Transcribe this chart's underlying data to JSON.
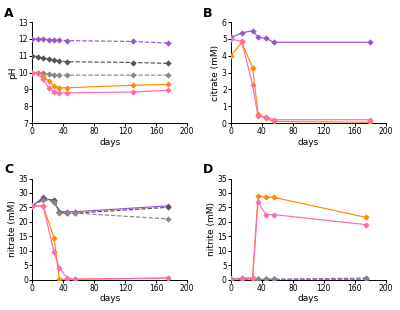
{
  "panel_A": {
    "label": "A",
    "ylabel": "pH",
    "xlabel": "days",
    "ylim": [
      7,
      13
    ],
    "yticks": [
      7,
      8,
      9,
      10,
      11,
      12,
      13
    ],
    "xlim": [
      0,
      200
    ],
    "xticks": [
      0,
      40,
      80,
      120,
      160,
      200
    ],
    "series": [
      {
        "x": [
          0,
          7,
          14,
          21,
          28,
          35,
          45,
          130,
          175
        ],
        "y": [
          12.0,
          12.0,
          12.0,
          11.95,
          11.95,
          11.95,
          11.9,
          11.85,
          11.75
        ],
        "color": "#9955CC",
        "dashed": true,
        "marker": "D"
      },
      {
        "x": [
          0,
          7,
          14,
          21,
          28,
          35,
          45,
          130,
          175
        ],
        "y": [
          11.0,
          10.95,
          10.85,
          10.8,
          10.75,
          10.7,
          10.65,
          10.6,
          10.55
        ],
        "color": "#555555",
        "dashed": true,
        "marker": "D"
      },
      {
        "x": [
          0,
          7,
          14,
          21,
          28,
          35,
          45,
          130,
          175
        ],
        "y": [
          10.0,
          10.0,
          9.95,
          9.9,
          9.88,
          9.87,
          9.85,
          9.85,
          9.85
        ],
        "color": "#888888",
        "dashed": true,
        "marker": "D"
      },
      {
        "x": [
          0,
          7,
          14,
          21,
          28,
          35,
          45,
          130,
          175
        ],
        "y": [
          10.0,
          10.0,
          9.8,
          9.5,
          9.2,
          9.1,
          9.1,
          9.25,
          9.3
        ],
        "color": "#FF8C00",
        "dashed": false,
        "marker": "D"
      },
      {
        "x": [
          0,
          7,
          14,
          21,
          28,
          35,
          45,
          130,
          175
        ],
        "y": [
          10.0,
          9.95,
          9.6,
          9.1,
          8.85,
          8.8,
          8.8,
          8.85,
          8.95
        ],
        "color": "#FF69B4",
        "dashed": false,
        "marker": "D"
      }
    ]
  },
  "panel_B": {
    "label": "B",
    "ylabel": "citrate (mM)",
    "xlabel": "days",
    "ylim": [
      0,
      6
    ],
    "yticks": [
      0,
      1,
      2,
      3,
      4,
      5,
      6
    ],
    "xlim": [
      0,
      200
    ],
    "xticks": [
      0,
      40,
      80,
      120,
      160,
      200
    ],
    "series": [
      {
        "x": [
          0,
          14,
          28,
          35,
          45,
          55,
          180
        ],
        "y": [
          5.1,
          5.35,
          5.5,
          5.1,
          5.05,
          4.8,
          4.8
        ],
        "color": "#9955CC",
        "dashed": false,
        "marker": "D"
      },
      {
        "x": [
          0,
          14,
          28,
          35,
          45,
          55,
          180
        ],
        "y": [
          4.0,
          4.8,
          3.3,
          0.55,
          0.3,
          0.1,
          0.05
        ],
        "color": "#FF8C00",
        "dashed": false,
        "marker": "D"
      },
      {
        "x": [
          0,
          14,
          28,
          35,
          45,
          55,
          180
        ],
        "y": [
          5.0,
          4.85,
          2.25,
          0.4,
          0.35,
          0.2,
          0.2
        ],
        "color": "#FF69B4",
        "dashed": false,
        "marker": "D"
      }
    ]
  },
  "panel_C": {
    "label": "C",
    "ylabel": "nitrate (mM)",
    "xlabel": "days",
    "ylim": [
      0,
      35
    ],
    "yticks": [
      0,
      5,
      10,
      15,
      20,
      25,
      30,
      35
    ],
    "xlim": [
      0,
      200
    ],
    "xticks": [
      0,
      40,
      80,
      120,
      160,
      200
    ],
    "series": [
      {
        "x": [
          0,
          14,
          28,
          35,
          45,
          55,
          175
        ],
        "y": [
          25.5,
          28.5,
          27.0,
          23.5,
          23.5,
          23.5,
          25.5
        ],
        "color": "#9955CC",
        "dashed": false,
        "marker": "D"
      },
      {
        "x": [
          0,
          14,
          28,
          35,
          45,
          55,
          175
        ],
        "y": [
          25.5,
          28.0,
          27.5,
          23.5,
          23.0,
          23.0,
          25.0
        ],
        "color": "#555555",
        "dashed": true,
        "marker": "D"
      },
      {
        "x": [
          0,
          14,
          28,
          35,
          45,
          55,
          175
        ],
        "y": [
          25.5,
          27.5,
          27.0,
          23.0,
          23.0,
          23.0,
          21.0
        ],
        "color": "#888888",
        "dashed": true,
        "marker": "D"
      },
      {
        "x": [
          0,
          14,
          28,
          35,
          45,
          55,
          175
        ],
        "y": [
          25.5,
          25.5,
          14.5,
          0.1,
          0.1,
          0.1,
          0.5
        ],
        "color": "#FF8C00",
        "dashed": false,
        "marker": "D"
      },
      {
        "x": [
          0,
          14,
          28,
          35,
          45,
          55,
          175
        ],
        "y": [
          25.5,
          25.5,
          9.5,
          4.0,
          0.5,
          0.1,
          0.5
        ],
        "color": "#FF69B4",
        "dashed": false,
        "marker": "D"
      }
    ]
  },
  "panel_D": {
    "label": "D",
    "ylabel": "nitrite (mM)",
    "xlabel": "days",
    "ylim": [
      0,
      35
    ],
    "yticks": [
      0,
      5,
      10,
      15,
      20,
      25,
      30,
      35
    ],
    "xlim": [
      0,
      200
    ],
    "xticks": [
      0,
      40,
      80,
      120,
      160,
      200
    ],
    "series": [
      {
        "x": [
          0,
          14,
          28,
          35,
          45,
          55,
          175
        ],
        "y": [
          0.1,
          0.1,
          0.1,
          0.1,
          0.1,
          0.1,
          0.5
        ],
        "color": "#9955CC",
        "dashed": true,
        "marker": "D"
      },
      {
        "x": [
          0,
          14,
          28,
          35,
          45,
          55,
          175
        ],
        "y": [
          0.1,
          0.1,
          0.1,
          0.1,
          0.1,
          0.1,
          0.1
        ],
        "color": "#555555",
        "dashed": true,
        "marker": "D"
      },
      {
        "x": [
          0,
          14,
          28,
          35,
          45,
          55,
          175
        ],
        "y": [
          0.1,
          0.1,
          0.1,
          0.1,
          0.1,
          0.1,
          0.1
        ],
        "color": "#888888",
        "dashed": true,
        "marker": "D"
      },
      {
        "x": [
          0,
          14,
          28,
          35,
          45,
          55,
          175
        ],
        "y": [
          0.1,
          0.5,
          0.5,
          29.0,
          28.5,
          28.5,
          21.5
        ],
        "color": "#FF8C00",
        "dashed": false,
        "marker": "D"
      },
      {
        "x": [
          0,
          14,
          28,
          35,
          45,
          55,
          175
        ],
        "y": [
          0.1,
          0.5,
          0.5,
          27.0,
          22.5,
          22.5,
          19.0
        ],
        "color": "#FF69B4",
        "dashed": false,
        "marker": "D"
      }
    ]
  }
}
